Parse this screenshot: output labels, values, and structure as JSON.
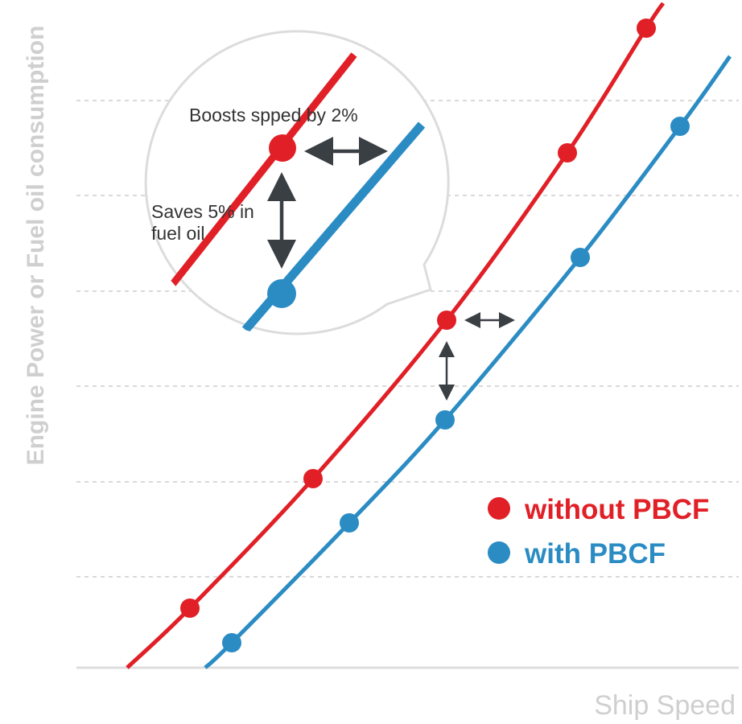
{
  "chart_data": {
    "type": "line",
    "xlabel": "Ship Speed",
    "ylabel": "Engine Power or Fuel oil consumption",
    "grid": true,
    "legend_position": "bottom-right",
    "colors": {
      "without": "#e11f26",
      "with": "#2b8cc4",
      "grid": "#d9d9d9",
      "axis": "#dddddd",
      "arrow": "#3a3f44",
      "label": "#cfcfcf"
    },
    "series": [
      {
        "name": "without PBCF",
        "color": "#e11f26",
        "points": [
          [
            236,
            756
          ],
          [
            389,
            595
          ],
          [
            555,
            398
          ],
          [
            705,
            190
          ],
          [
            803,
            35
          ]
        ]
      },
      {
        "name": "with PBCF",
        "color": "#2b8cc4",
        "points": [
          [
            288,
            799
          ],
          [
            434,
            650
          ],
          [
            553,
            522
          ],
          [
            721,
            320
          ],
          [
            845,
            157
          ]
        ]
      }
    ],
    "annotations": {
      "speed_note": "Boosts spped by 2%",
      "fuel_note_line1": "Saves 5% in",
      "fuel_note_line2": "fuel oil"
    }
  }
}
